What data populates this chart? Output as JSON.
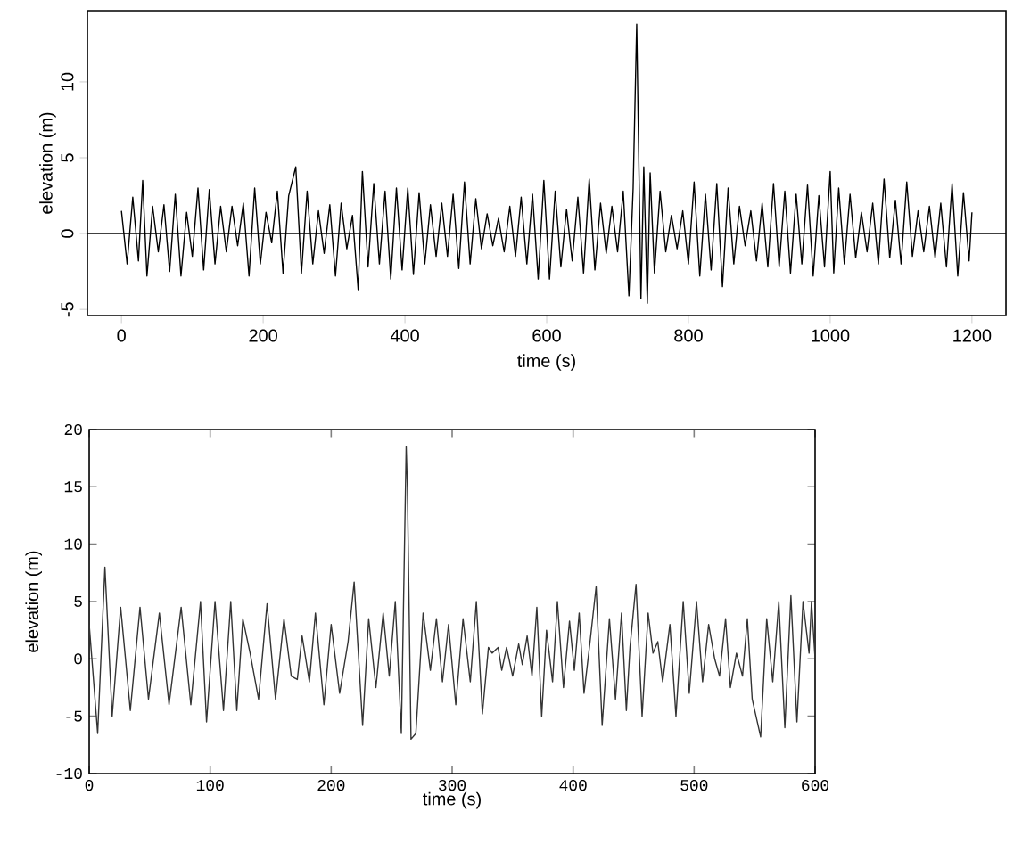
{
  "chart_data": [
    {
      "type": "line",
      "xlabel": "time (s)",
      "ylabel": "elevation (m)",
      "xlim": [
        -48,
        1248
      ],
      "ylim": [
        -5.4,
        14.7
      ],
      "xticks": [
        0,
        200,
        400,
        600,
        800,
        1000,
        1200
      ],
      "yticks": [
        -5,
        0,
        5,
        10
      ],
      "ref_lines": [
        {
          "axis": "y",
          "value": 0
        }
      ],
      "series": [
        {
          "color": "#000000",
          "x": [
            0,
            8,
            16,
            24,
            30,
            36,
            44,
            52,
            60,
            68,
            76,
            84,
            92,
            100,
            108,
            116,
            124,
            132,
            140,
            148,
            156,
            164,
            172,
            180,
            188,
            196,
            204,
            212,
            220,
            228,
            236,
            246,
            254,
            262,
            270,
            278,
            286,
            294,
            302,
            310,
            318,
            326,
            334,
            340,
            348,
            356,
            364,
            372,
            380,
            388,
            396,
            404,
            412,
            420,
            428,
            436,
            444,
            452,
            460,
            468,
            476,
            484,
            492,
            500,
            508,
            516,
            524,
            532,
            540,
            548,
            556,
            564,
            572,
            580,
            588,
            596,
            604,
            612,
            620,
            628,
            636,
            644,
            652,
            660,
            668,
            676,
            684,
            692,
            700,
            708,
            716,
            722,
            727,
            733,
            737,
            742,
            746,
            752,
            760,
            768,
            776,
            784,
            792,
            800,
            808,
            816,
            824,
            832,
            840,
            848,
            856,
            864,
            872,
            880,
            888,
            896,
            904,
            912,
            920,
            928,
            936,
            944,
            952,
            960,
            968,
            976,
            984,
            992,
            1000,
            1005,
            1012,
            1020,
            1028,
            1036,
            1044,
            1052,
            1060,
            1068,
            1076,
            1084,
            1092,
            1100,
            1108,
            1116,
            1124,
            1132,
            1140,
            1148,
            1156,
            1164,
            1172,
            1180,
            1188,
            1196,
            1200
          ],
          "values": [
            1.5,
            -2.0,
            2.4,
            -1.8,
            3.5,
            -2.8,
            1.8,
            -1.2,
            1.9,
            -2.5,
            2.6,
            -2.8,
            1.4,
            -1.5,
            3.0,
            -2.4,
            2.9,
            -2.0,
            1.8,
            -1.2,
            1.8,
            -0.8,
            2.0,
            -2.8,
            3.0,
            -2.0,
            1.4,
            -0.6,
            2.8,
            -2.6,
            2.5,
            4.4,
            -2.6,
            2.8,
            -2.0,
            1.5,
            -1.3,
            1.9,
            -2.8,
            2.0,
            -1.0,
            1.2,
            -3.7,
            4.1,
            -2.2,
            3.3,
            -2.0,
            2.8,
            -3.0,
            3.0,
            -2.4,
            3.0,
            -2.7,
            2.7,
            -2.0,
            1.9,
            -1.5,
            2.0,
            -1.5,
            2.6,
            -2.3,
            3.4,
            -2.0,
            2.3,
            -1.0,
            1.3,
            -0.8,
            1.0,
            -1.2,
            1.8,
            -1.5,
            2.4,
            -2.0,
            2.6,
            -3.0,
            3.5,
            -3.0,
            2.8,
            -2.2,
            1.6,
            -1.8,
            2.4,
            -2.6,
            3.6,
            -2.4,
            2.0,
            -1.3,
            1.8,
            -1.2,
            2.8,
            -4.1,
            3.0,
            13.8,
            -4.3,
            4.4,
            -4.6,
            4.0,
            -2.6,
            2.8,
            -1.2,
            1.2,
            -1.0,
            1.5,
            -2.0,
            3.4,
            -2.8,
            2.6,
            -2.4,
            3.3,
            -3.5,
            3.0,
            -2.0,
            1.8,
            -0.8,
            1.5,
            -1.8,
            2.0,
            -2.2,
            3.3,
            -2.2,
            2.8,
            -2.6,
            2.6,
            -2.0,
            3.2,
            -2.8,
            2.5,
            -2.2,
            4.1,
            -2.6,
            3.0,
            -2.0,
            2.6,
            -1.6,
            1.4,
            -1.2,
            2.0,
            -2.0,
            3.6,
            -1.6,
            2.2,
            -2.0,
            3.4,
            -1.5,
            1.5,
            -1.2,
            1.8,
            -1.6,
            2.0,
            -2.2,
            3.3,
            -2.8,
            2.7,
            -1.8,
            1.4
          ]
        }
      ]
    },
    {
      "type": "line",
      "xlabel": "time (s)",
      "ylabel": "elevation (m)",
      "xlim": [
        0,
        600
      ],
      "ylim": [
        -10,
        20
      ],
      "xticks": [
        0,
        100,
        200,
        300,
        400,
        500,
        600
      ],
      "yticks": [
        -10,
        -5,
        0,
        5,
        10,
        15,
        20
      ],
      "series": [
        {
          "color": "#333333",
          "x": [
            0,
            7,
            13,
            19,
            26,
            34,
            42,
            49,
            58,
            66,
            76,
            84,
            92,
            97,
            104,
            111,
            117,
            122,
            127,
            133,
            140,
            147,
            154,
            161,
            167,
            172,
            176,
            182,
            187,
            194,
            200,
            207,
            214,
            219,
            226,
            231,
            237,
            243,
            248,
            253,
            258,
            262,
            263,
            266,
            270,
            276,
            282,
            287,
            292,
            297,
            303,
            309,
            315,
            320,
            325,
            330,
            333,
            338,
            341,
            345,
            350,
            355,
            358,
            362,
            366,
            370,
            374,
            378,
            383,
            387,
            392,
            397,
            401,
            405,
            409,
            414,
            419,
            424,
            430,
            435,
            440,
            444,
            447,
            452,
            457,
            462,
            466,
            470,
            474,
            480,
            485,
            491,
            496,
            502,
            507,
            512,
            517,
            521,
            526,
            530,
            535,
            540,
            544,
            548,
            555,
            560,
            565,
            570,
            575,
            580,
            585,
            590,
            595,
            597,
            600
          ],
          "values": [
            3,
            -6.5,
            8,
            -5,
            4.5,
            -4.5,
            4.5,
            -3.5,
            4,
            -4,
            4.5,
            -4,
            5,
            -5.5,
            5,
            -4.5,
            5,
            -4.5,
            3.5,
            0.5,
            -3.5,
            4.8,
            -3.5,
            3.5,
            -1.5,
            -1.8,
            2,
            -2,
            4,
            -4,
            3,
            -3,
            1.5,
            6.7,
            -5.8,
            3.5,
            -2.5,
            4,
            -1.5,
            5,
            -6.5,
            18.5,
            15,
            -7,
            -6.5,
            4,
            -1,
            3.5,
            -2,
            3,
            -4,
            3.5,
            -2,
            5,
            -4.8,
            1,
            0.5,
            1,
            -1,
            1,
            -1.5,
            1.3,
            -0.5,
            2,
            -1.5,
            4.5,
            -5,
            2.5,
            -2,
            5,
            -2.5,
            3.3,
            -1,
            4,
            -3,
            1.5,
            6.3,
            -5.8,
            3.5,
            -3.5,
            4,
            -4.5,
            1,
            6.5,
            -5,
            4,
            0.5,
            1.5,
            -2,
            3,
            -5,
            5,
            -3,
            5,
            -2,
            3,
            0,
            -1.5,
            3.5,
            -2.5,
            0.5,
            -1.5,
            3.5,
            -3.5,
            -6.8,
            3.5,
            -2,
            5,
            -6,
            5.5,
            -5.5,
            5,
            0.5,
            5,
            0
          ]
        }
      ]
    }
  ]
}
